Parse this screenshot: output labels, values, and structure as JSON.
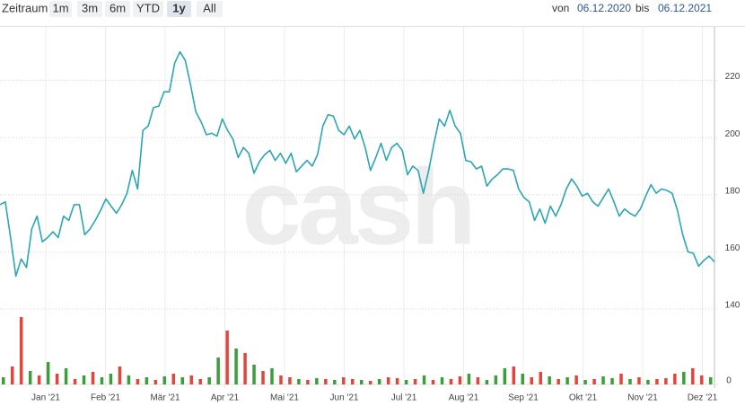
{
  "toolbar": {
    "label": "Zeitraum",
    "buttons": [
      "1m",
      "3m",
      "6m",
      "YTD",
      "1y",
      "All"
    ],
    "active": 4
  },
  "range": {
    "from_label": "von",
    "from": "06.12.2020",
    "to_label": "bis",
    "to": "06.12.2021"
  },
  "chart_data": {
    "type": "line",
    "watermark": "cash",
    "months": [
      "Jan '21",
      "Feb '21",
      "Mär '21",
      "Apr '21",
      "Mai '21",
      "Jun '21",
      "Jul '21",
      "Aug '21",
      "Sep '21",
      "Okt '21",
      "Nov '21",
      "Dez '21"
    ],
    "series": [
      {
        "color": "#2ba6b4",
        "values": [
          176.5,
          177.5,
          165,
          151.5,
          157.5,
          154.5,
          168,
          172.5,
          163.5,
          165,
          167,
          165,
          172.5,
          171,
          176.5,
          176.5,
          166,
          168,
          171,
          174.5,
          178.5,
          176,
          173.5,
          176.5,
          180.5,
          188.5,
          182,
          202.5,
          204,
          210.5,
          211,
          216,
          216,
          226,
          230,
          227,
          218.5,
          209,
          205.5,
          201,
          201.5,
          200.5,
          206.5,
          202.5,
          199.5,
          193,
          196.5,
          194.5,
          187.5,
          191.5,
          194,
          195.5,
          192,
          194.5,
          191,
          194.5,
          188,
          190,
          192,
          190,
          194,
          204,
          208,
          207.5,
          202.5,
          201,
          204,
          199.5,
          202.5,
          196.5,
          188.5,
          193,
          198,
          192,
          196.5,
          198,
          195.5,
          187,
          190,
          188.5,
          180.5,
          188.5,
          198,
          206.5,
          204,
          209.5,
          204,
          201.5,
          192,
          191.5,
          189,
          190,
          183,
          185.5,
          187,
          189,
          189,
          188.5,
          182,
          179,
          177.5,
          171,
          175,
          170,
          176,
          172.5,
          176.5,
          182,
          185.5,
          183,
          179.5,
          180.5,
          177.5,
          176,
          179,
          182,
          177.5,
          172.5,
          175,
          173.5,
          172.5,
          175,
          179.5,
          183.5,
          180.5,
          182,
          181.5,
          180.5,
          174.5,
          166,
          160,
          159.5,
          155,
          157,
          158.5,
          156.5
        ]
      }
    ],
    "ylim": [
      140,
      238.7
    ],
    "yticks": [
      140,
      160,
      180,
      200,
      220
    ],
    "grid": true,
    "volume": {
      "type": "bar",
      "ylim": [
        0,
        80
      ],
      "yticks": [
        0
      ],
      "values": [
        8,
        20,
        75,
        15,
        10,
        25,
        12,
        18,
        6,
        10,
        14,
        8,
        12,
        20,
        10,
        6,
        8,
        5,
        9,
        12,
        8,
        10,
        6,
        8,
        30,
        60,
        40,
        35,
        22,
        15,
        18,
        10,
        8,
        6,
        5,
        7,
        6,
        5,
        8,
        6,
        5,
        4,
        6,
        8,
        7,
        5,
        6,
        10,
        5,
        8,
        6,
        9,
        12,
        8,
        5,
        10,
        18,
        20,
        12,
        8,
        14,
        9,
        6,
        8,
        10,
        5,
        6,
        9,
        7,
        12,
        6,
        8,
        5,
        6,
        7,
        12,
        14,
        18,
        10,
        8
      ],
      "colors": [
        "#3b9e3b",
        "#e0463c",
        "#e0463c",
        "#3b9e3b",
        "#e0463c",
        "#3b9e3b",
        "#e0463c",
        "#3b9e3b",
        "#e0463c",
        "#3b9e3b",
        "#e0463c",
        "#3b9e3b",
        "#3b9e3b",
        "#e0463c",
        "#3b9e3b",
        "#e0463c",
        "#3b9e3b",
        "#e0463c",
        "#3b9e3b",
        "#e0463c",
        "#3b9e3b",
        "#e0463c",
        "#e0463c",
        "#3b9e3b",
        "#3b9e3b",
        "#e0463c",
        "#3b9e3b",
        "#e0463c",
        "#3b9e3b",
        "#e0463c",
        "#3b9e3b",
        "#e0463c",
        "#e0463c",
        "#3b9e3b",
        "#e0463c",
        "#3b9e3b",
        "#e0463c",
        "#3b9e3b",
        "#e0463c",
        "#e0463c",
        "#3b9e3b",
        "#e0463c",
        "#3b9e3b",
        "#e0463c",
        "#e0463c",
        "#3b9e3b",
        "#e0463c",
        "#3b9e3b",
        "#e0463c",
        "#3b9e3b",
        "#e0463c",
        "#e0463c",
        "#3b9e3b",
        "#e0463c",
        "#3b9e3b",
        "#3b9e3b",
        "#3b9e3b",
        "#e0463c",
        "#3b9e3b",
        "#e0463c",
        "#e0463c",
        "#3b9e3b",
        "#e0463c",
        "#3b9e3b",
        "#e0463c",
        "#3b9e3b",
        "#e0463c",
        "#3b9e3b",
        "#3b9e3b",
        "#e0463c",
        "#3b9e3b",
        "#e0463c",
        "#3b9e3b",
        "#e0463c",
        "#e0463c",
        "#e0463c",
        "#3b9e3b",
        "#e0463c",
        "#e0463c",
        "#3b9e3b"
      ]
    }
  }
}
